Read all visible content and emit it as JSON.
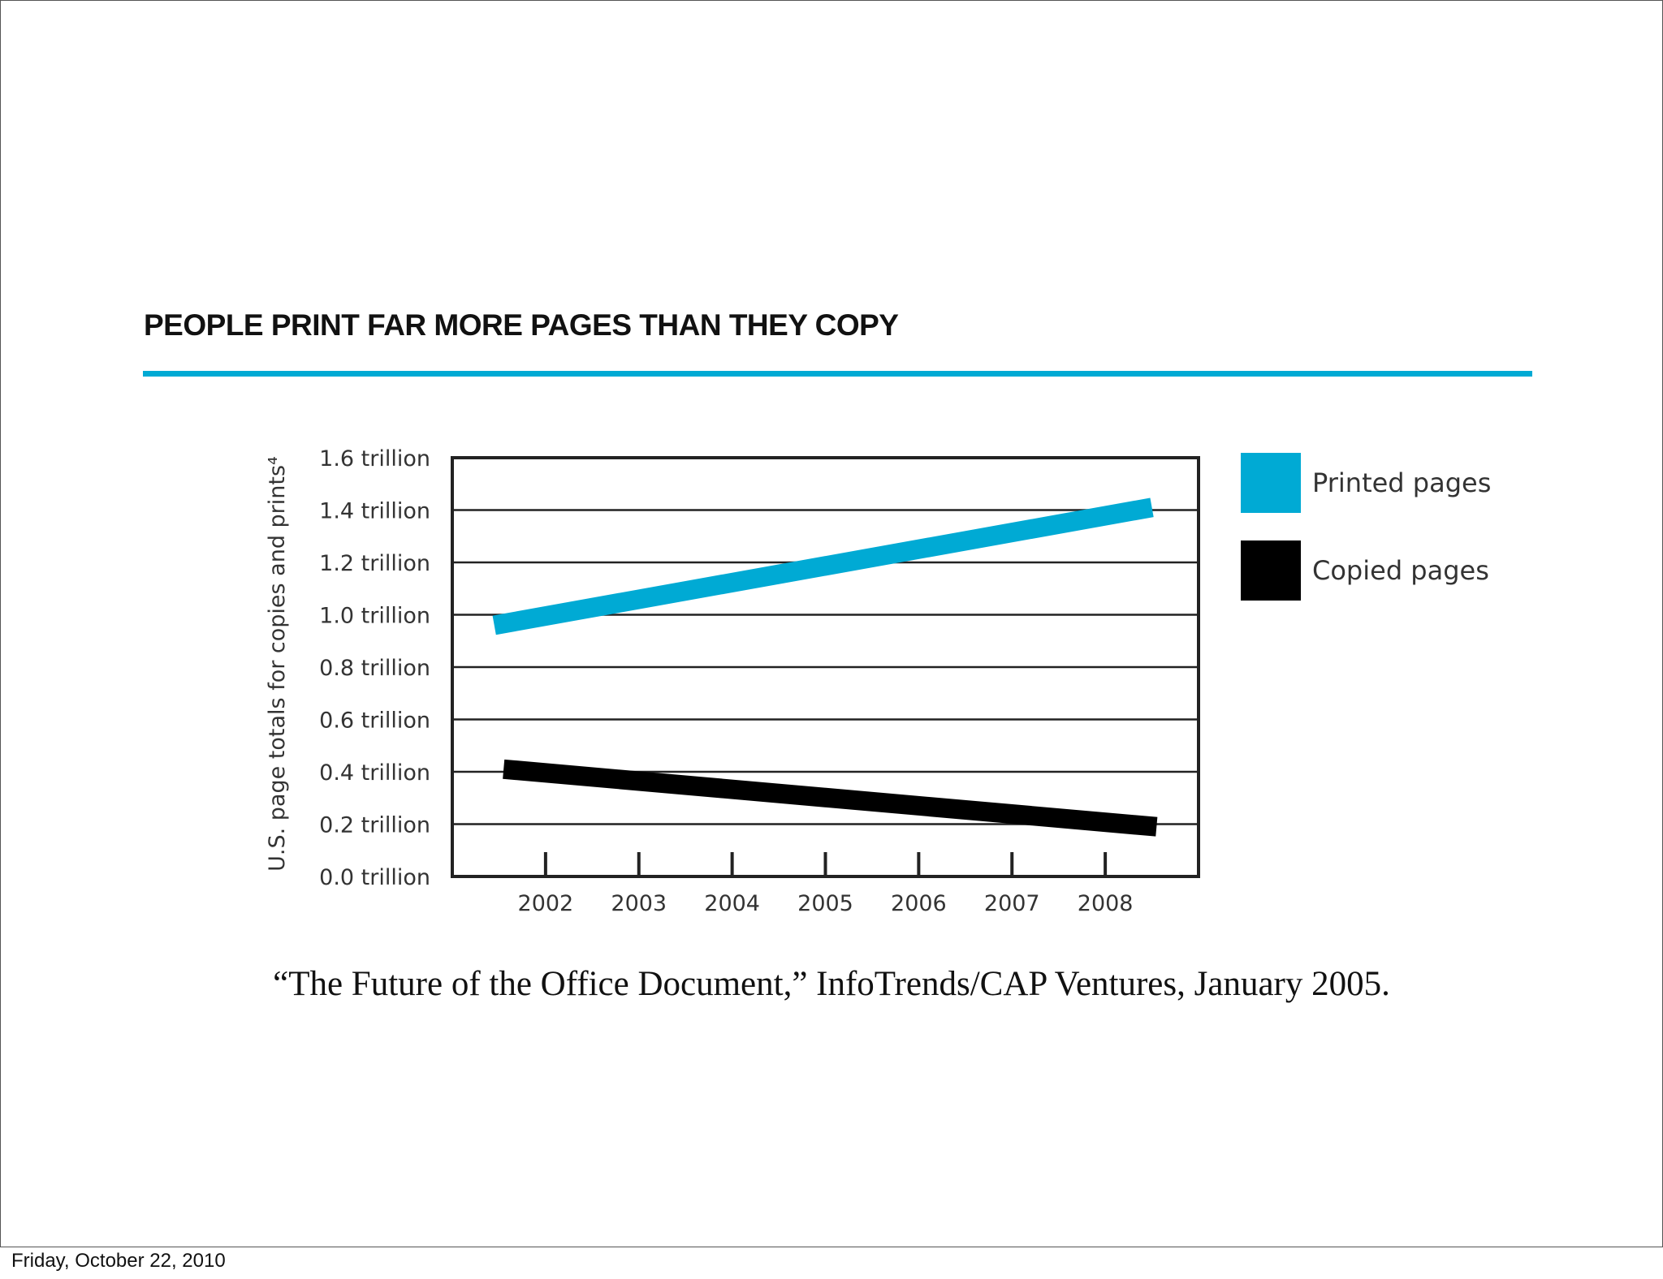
{
  "slide": {
    "title": "PEOPLE PRINT FAR MORE PAGES THAN THEY COPY",
    "citation": "“The Future of the Office Document,” InfoTrends/CAP Ventures, January 2005.",
    "footer_date": "Friday, October 22, 2010",
    "accent_color": "#00aad4"
  },
  "chart_data": {
    "type": "line",
    "title": "PEOPLE PRINT FAR MORE PAGES THAN THEY COPY",
    "xlabel": "",
    "ylabel": "U.S. page totals for copies and prints⁴",
    "x": [
      2002,
      2003,
      2004,
      2005,
      2006,
      2007,
      2008
    ],
    "x_tick_labels": [
      "2002",
      "2003",
      "2004",
      "2005",
      "2006",
      "2007",
      "2008"
    ],
    "y_tick_values": [
      0,
      0.2,
      0.4,
      0.6,
      0.8,
      1.0,
      1.2,
      1.4,
      1.6
    ],
    "y_tick_labels": [
      "0.0 trillion",
      "0.2 trillion",
      "0.4 trillion",
      "0.6 trillion",
      "0.8 trillion",
      "1.0 trillion",
      "1.2 trillion",
      "1.4 trillion",
      "1.6 trillion"
    ],
    "ylim": [
      0,
      1.6
    ],
    "xlim": [
      2001,
      2009
    ],
    "grid": true,
    "legend_position": "right",
    "series": [
      {
        "name": "Printed pages",
        "color": "#00aad4",
        "x": [
          2001.45,
          2008.5
        ],
        "values": [
          0.96,
          1.41
        ]
      },
      {
        "name": "Copied pages",
        "color": "#000000",
        "x": [
          2001.55,
          2008.55
        ],
        "values": [
          0.41,
          0.19
        ]
      }
    ]
  }
}
